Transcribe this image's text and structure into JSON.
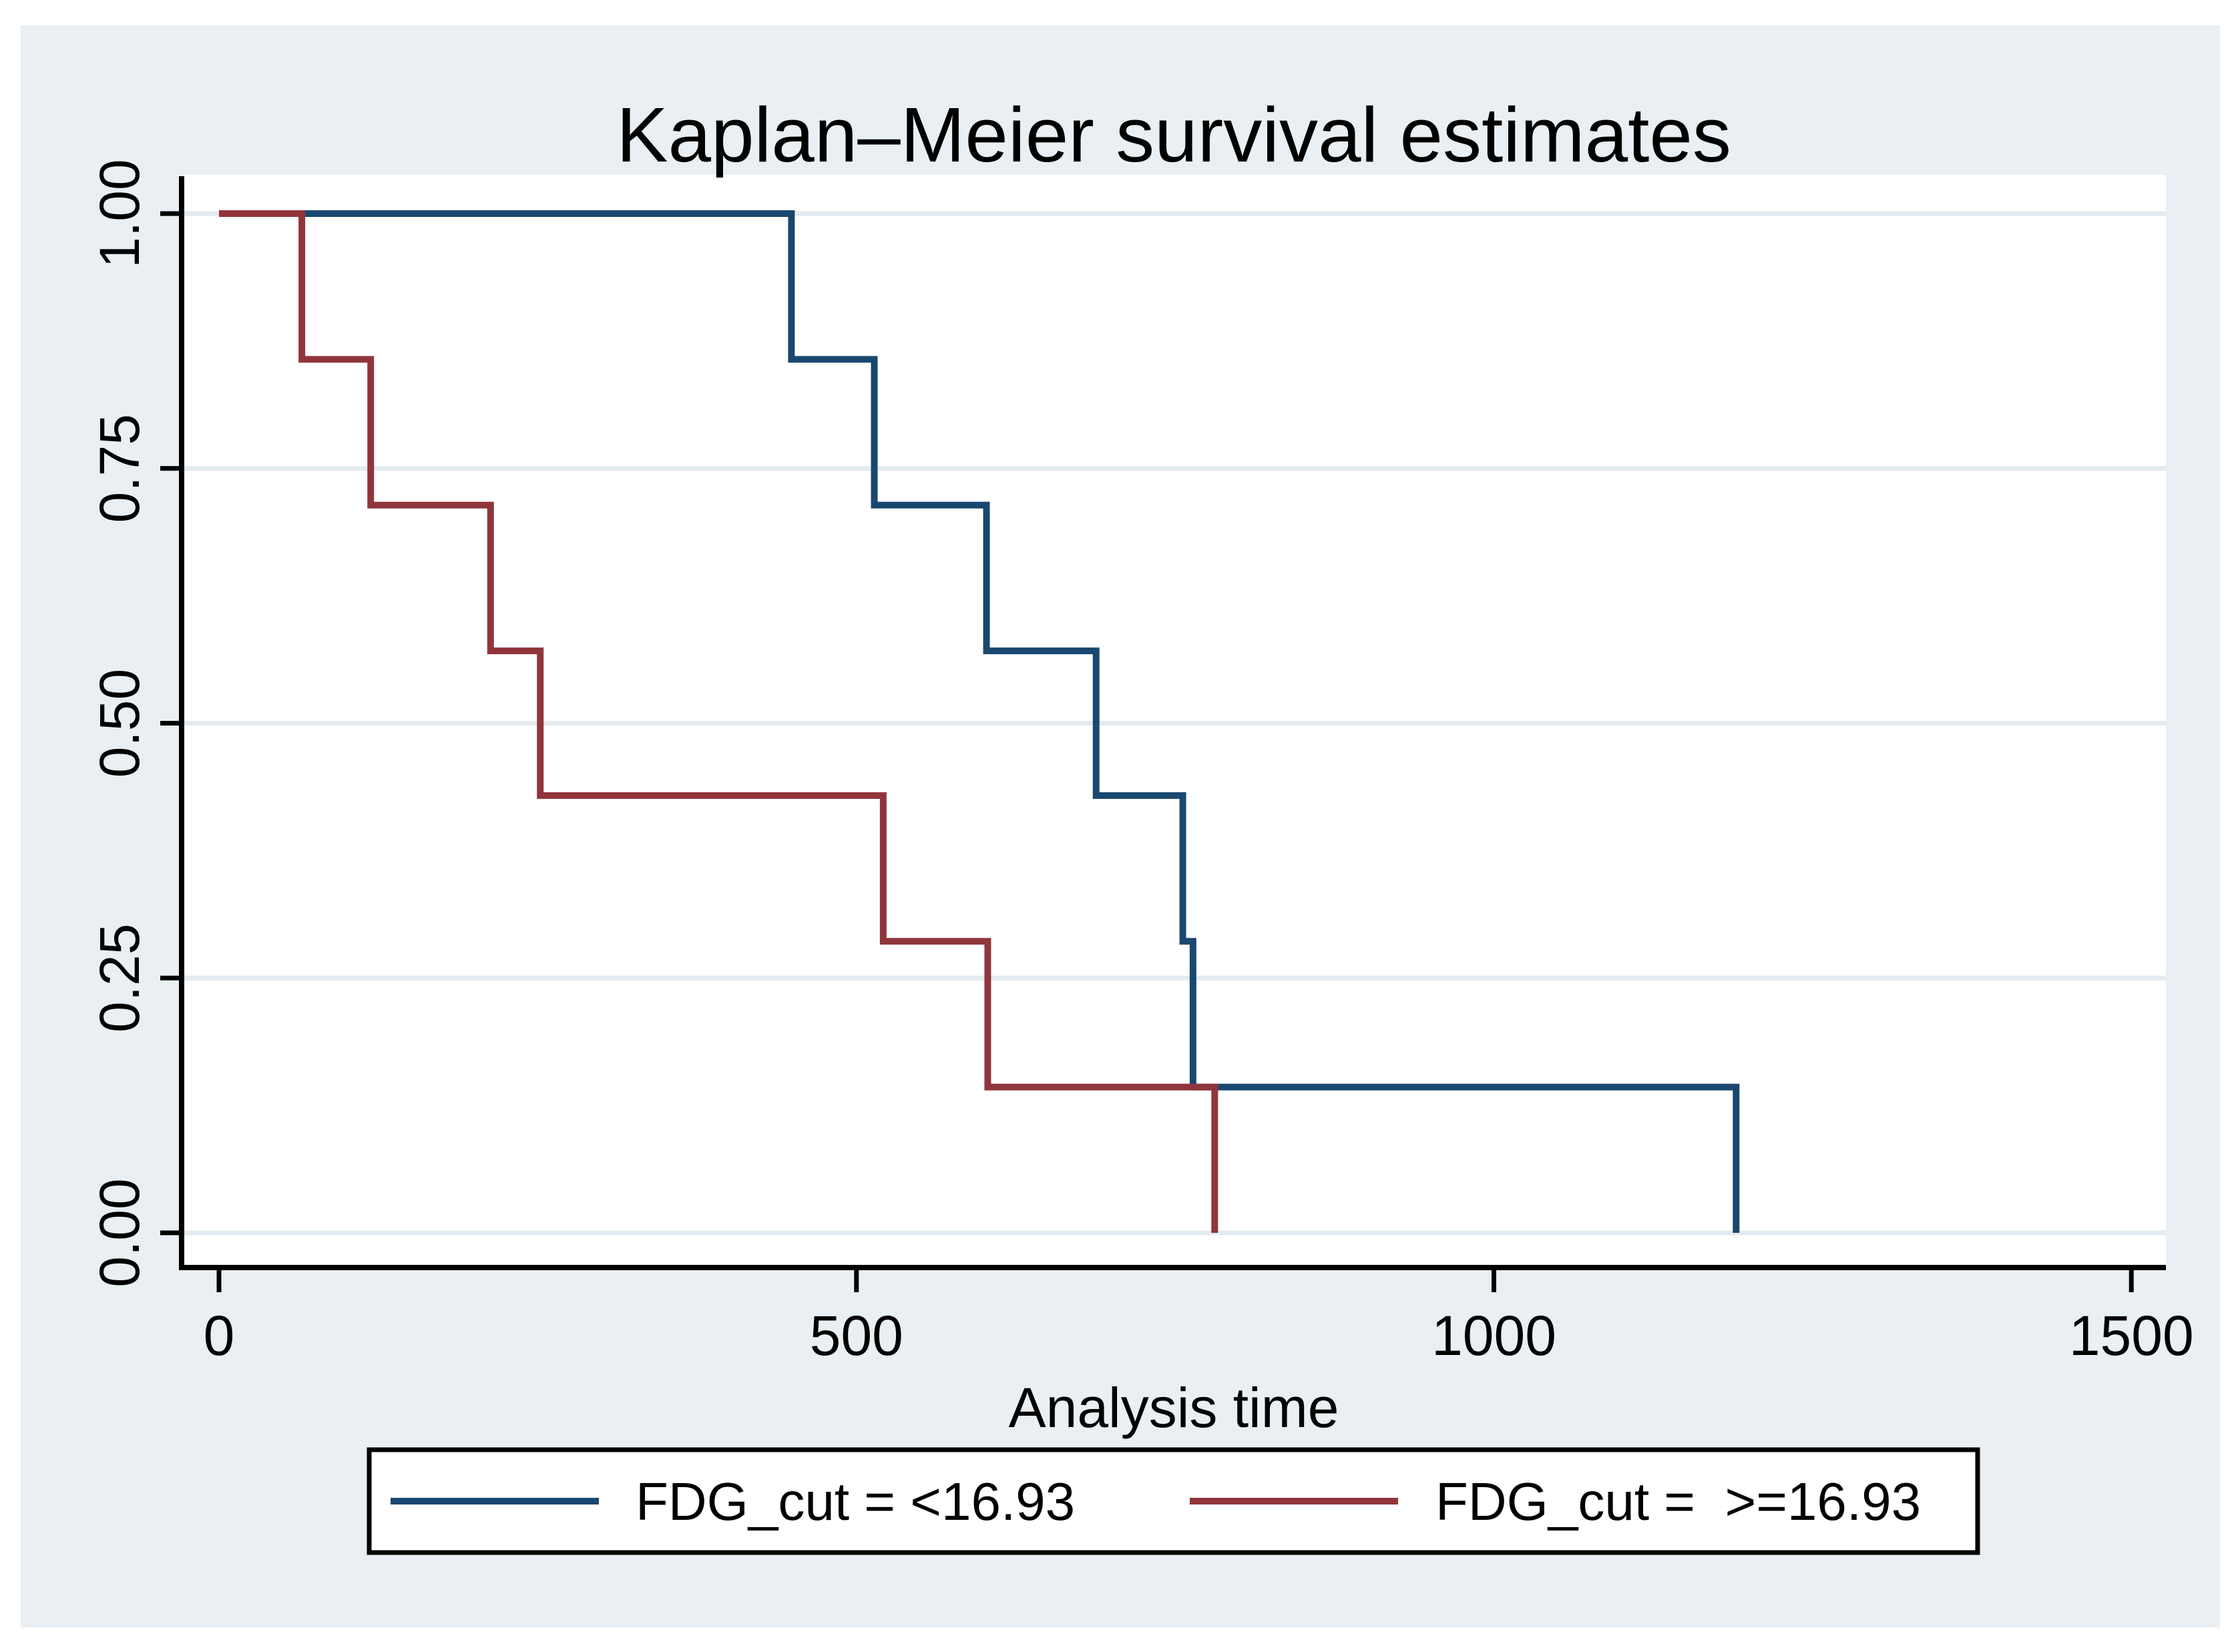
{
  "page": {
    "background": "#ffffff",
    "panel_bg": "#e9eff2",
    "plot_bg": "#ffffff",
    "gridline_color": "#e2ebf0",
    "axis_color": "#000000"
  },
  "chart_data": {
    "type": "line",
    "variant": "kaplan-meier-step",
    "title": "Kaplan–Meier survival estimates",
    "title_color": "#1e3a5f",
    "xlabel": "Analysis time",
    "x_ticks": [
      0,
      500,
      1000,
      1500
    ],
    "x_tick_labels": [
      "0",
      "500",
      "1000",
      "1500"
    ],
    "y_ticks": [
      0.0,
      0.25,
      0.5,
      0.75,
      1.0
    ],
    "y_tick_labels": [
      "0.00",
      "0.25",
      "0.50",
      "0.75",
      "1.00"
    ],
    "xlim": [
      0,
      1530
    ],
    "ylim": [
      0,
      1
    ],
    "grid": true,
    "legend_position": "bottom",
    "series": [
      {
        "id": "below-cutoff",
        "name": "FDG_cut = <16.93",
        "color": "#1a476f",
        "steps": [
          [
            0,
            1.0
          ],
          [
            449,
            0.857
          ],
          [
            514,
            0.714
          ],
          [
            602,
            0.571
          ],
          [
            688,
            0.429
          ],
          [
            756,
            0.286
          ],
          [
            764,
            0.143
          ],
          [
            1190,
            0.0
          ]
        ]
      },
      {
        "id": "above-cutoff",
        "name": "FDG_cut =  >=16.93",
        "color": "#90353b",
        "steps": [
          [
            0,
            1.0
          ],
          [
            65,
            0.857
          ],
          [
            119,
            0.714
          ],
          [
            213,
            0.571
          ],
          [
            252,
            0.429
          ],
          [
            521,
            0.286
          ],
          [
            603,
            0.143
          ],
          [
            781,
            0.0
          ]
        ]
      }
    ]
  }
}
